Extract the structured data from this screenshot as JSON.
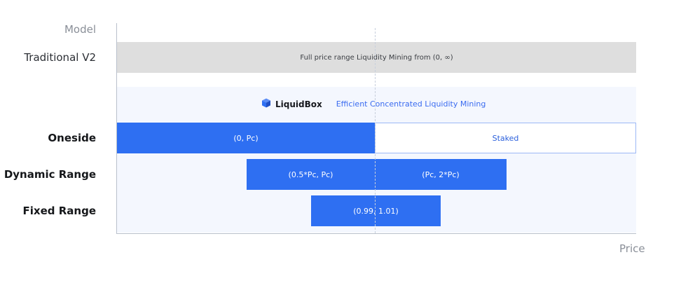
{
  "row_labels": {
    "model": "Model",
    "traditional": "Traditional V2",
    "oneside": "Oneside",
    "dynamic": "Dynamic Range",
    "fixed": "Fixed Range"
  },
  "axis": {
    "x_label": "Price"
  },
  "traditional_bar": {
    "text": "Full price range Liquidity Mining from (0, ∞)"
  },
  "brand": {
    "icon": "cube-icon",
    "name": "LiquidBox",
    "tagline": "Efficient Concentrated Liquidity Mining"
  },
  "bars": {
    "oneside_left": "(0, Pc)",
    "oneside_right": "Staked",
    "dynamic_left": "(0.5*Pc, Pc)",
    "dynamic_right": "(Pc, 2*Pc)",
    "fixed": "(0.99, 1.01)"
  },
  "colors": {
    "blue": "#2e6ff2",
    "gray_bar": "#dedede",
    "panel": "#f4f7fe",
    "outline": "#9cb8f6"
  }
}
